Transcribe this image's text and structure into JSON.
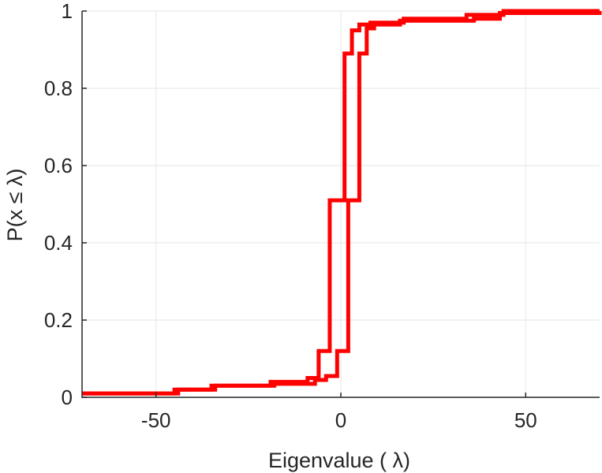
{
  "chart_data": {
    "type": "line",
    "step": true,
    "title": "",
    "xlabel": "Eigenvalue (   λ)",
    "ylabel": "P(x ≤ λ)",
    "xlim": [
      -70,
      70
    ],
    "ylim": [
      0,
      1
    ],
    "xticks": [
      -50,
      0,
      50
    ],
    "xtick_labels": [
      "-50",
      "0",
      "50"
    ],
    "yticks": [
      0,
      0.2,
      0.4,
      0.6,
      0.8,
      1
    ],
    "ytick_labels": [
      "0",
      "0.2",
      "0.4",
      "0.6",
      "0.8",
      "1"
    ],
    "grid": true,
    "color": "#ff0000",
    "series": [
      {
        "x": [
          -70,
          -44,
          -35,
          -19,
          -9,
          -6,
          -3,
          1,
          3,
          5,
          8,
          17,
          34,
          44,
          70
        ],
        "y": [
          0.01,
          0.02,
          0.03,
          0.04,
          0.05,
          0.12,
          0.51,
          0.89,
          0.95,
          0.965,
          0.97,
          0.98,
          0.99,
          1.0,
          1.0
        ]
      },
      {
        "x": [
          -70,
          -45,
          -34,
          -18,
          -7,
          -4,
          -1,
          2,
          5,
          7,
          9,
          16,
          36,
          43,
          70
        ],
        "y": [
          0.01,
          0.02,
          0.03,
          0.035,
          0.045,
          0.055,
          0.12,
          0.51,
          0.89,
          0.955,
          0.965,
          0.975,
          0.98,
          0.995,
          1.0
        ]
      }
    ]
  }
}
